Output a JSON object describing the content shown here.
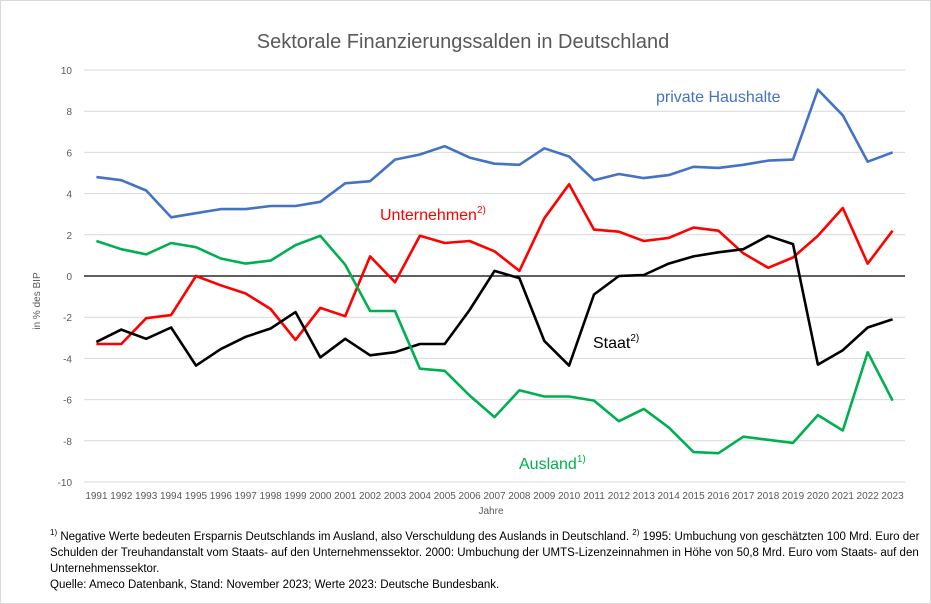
{
  "chart_data": {
    "type": "line",
    "title": "Sektorale Finanzierungssalden in Deutschland",
    "xlabel": "Jahre",
    "ylabel": "in % des BIP",
    "ylim": [
      -10,
      10
    ],
    "yticks": [
      10,
      8,
      6,
      4,
      2,
      0,
      -2,
      -4,
      -6,
      -8,
      -10
    ],
    "grid": true,
    "categories": [
      "1991",
      "1992",
      "1993",
      "1994",
      "1995",
      "1996",
      "1997",
      "1998",
      "1999",
      "2000",
      "2001",
      "2002",
      "2003",
      "2004",
      "2005",
      "2006",
      "2007",
      "2008",
      "2009",
      "2010",
      "2011",
      "2012",
      "2013",
      "2014",
      "2015",
      "2016",
      "2017",
      "2018",
      "2019",
      "2020",
      "2021",
      "2022",
      "2023"
    ],
    "series": [
      {
        "name": "private Haushalte",
        "sup": "",
        "color": "#4472c4",
        "values": [
          4.8,
          4.65,
          4.15,
          2.85,
          3.05,
          3.25,
          3.25,
          3.4,
          3.4,
          3.6,
          4.5,
          4.6,
          5.65,
          5.9,
          6.3,
          5.75,
          5.45,
          5.4,
          6.2,
          5.8,
          4.65,
          4.95,
          4.75,
          4.9,
          5.3,
          5.25,
          5.4,
          5.6,
          5.65,
          9.05,
          7.8,
          5.55,
          6.0
        ]
      },
      {
        "name": "Unternehmen",
        "sup": "2)",
        "color": "#ff0000",
        "values": [
          -3.3,
          -3.3,
          -2.05,
          -1.9,
          0.0,
          -0.45,
          -0.85,
          -1.6,
          -3.1,
          -1.55,
          -1.95,
          0.95,
          -0.3,
          1.95,
          1.6,
          1.7,
          1.2,
          0.25,
          2.8,
          4.45,
          2.25,
          2.15,
          1.7,
          1.85,
          2.35,
          2.2,
          1.1,
          0.4,
          0.9,
          1.95,
          3.3,
          0.6,
          2.2
        ]
      },
      {
        "name": "Staat",
        "sup": "2)",
        "color": "#000000",
        "values": [
          -3.2,
          -2.6,
          -3.05,
          -2.5,
          -4.35,
          -3.55,
          -2.95,
          -2.55,
          -1.75,
          -3.95,
          -3.05,
          -3.85,
          -3.7,
          -3.3,
          -3.3,
          -1.65,
          0.25,
          -0.1,
          -3.15,
          -4.35,
          -0.9,
          0.0,
          0.05,
          0.6,
          0.95,
          1.15,
          1.3,
          1.95,
          1.55,
          -4.3,
          -3.6,
          -2.5,
          -2.1
        ]
      },
      {
        "name": "Ausland",
        "sup": "1)",
        "color": "#00b050",
        "values": [
          1.7,
          1.3,
          1.05,
          1.6,
          1.4,
          0.85,
          0.6,
          0.75,
          1.5,
          1.95,
          0.55,
          -1.7,
          -1.7,
          -4.5,
          -4.6,
          -5.8,
          -6.85,
          -5.55,
          -5.85,
          -5.85,
          -6.05,
          -7.05,
          -6.45,
          -7.35,
          -8.55,
          -8.6,
          -7.8,
          -7.95,
          -8.1,
          -6.75,
          -7.5,
          -3.7,
          -6.05
        ]
      }
    ]
  },
  "footnotes": {
    "line1_sup": "1)",
    "line1_text": " Negative Werte bedeuten Ersparnis Deutschlands im Ausland, also Verschuldung des Auslands in Deutschland. ",
    "line1_sup2": "2)",
    "line1_text2": " 1995: Umbuchung von geschätzten 100 Mrd. Euro der Schulden der Treuhandanstalt vom Staats- auf den Unternehmenssektor. 2000: Umbuchung der UMTS-Lizenzeinnahmen in Höhe von 50,8 Mrd. Euro vom Staats- auf den Unternehmenssektor.",
    "source": "Quelle: Ameco Datenbank, Stand: November 2023; Werte 2023: Deutsche Bundesbank."
  }
}
